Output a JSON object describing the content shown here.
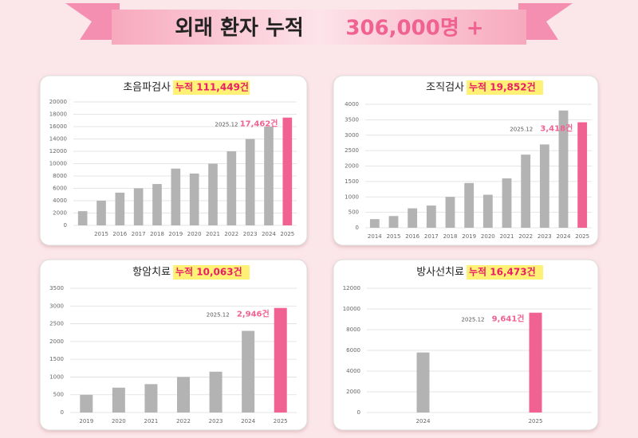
{
  "header": {
    "title": "외래 환자 누적",
    "total": "306,000명 +"
  },
  "chart_data": [
    {
      "type": "bar",
      "title": "초음파검사",
      "highlight": "누적 111,449건",
      "categories": [
        null,
        "2015",
        "2016",
        "2017",
        "2018",
        "2019",
        "2020",
        "2021",
        "2022",
        "2023",
        "2024",
        "2025"
      ],
      "values": [
        2300,
        4000,
        5300,
        6000,
        6700,
        9200,
        8400,
        10000,
        12000,
        14000,
        16000,
        17462
      ],
      "color": "#b3b3b3",
      "highlight_color": "#f06292",
      "ylim": [
        0,
        20000
      ],
      "yticks": [
        0,
        2000,
        4000,
        6000,
        8000,
        10000,
        12000,
        14000,
        16000,
        18000,
        20000
      ],
      "grid": true,
      "annotation": {
        "date": "2025.12",
        "label": "17,462건"
      }
    },
    {
      "type": "bar",
      "title": "조직검사",
      "highlight": "누적 19,852건",
      "categories": [
        "2014",
        "2015",
        "2016",
        "2017",
        "2018",
        "2019",
        "2020",
        "2021",
        "2022",
        "2023",
        "2024",
        "2025"
      ],
      "values": [
        280,
        380,
        630,
        720,
        1000,
        1450,
        1070,
        1600,
        2370,
        2700,
        3800,
        3418
      ],
      "color": "#b3b3b3",
      "highlight_color": "#f06292",
      "ylim": [
        0,
        4000
      ],
      "yticks": [
        0,
        500,
        1000,
        1500,
        2000,
        2500,
        3000,
        3500,
        4000
      ],
      "grid": true,
      "annotation": {
        "date": "2025.12",
        "label": "3,418건"
      }
    },
    {
      "type": "bar",
      "title": "항암치료",
      "highlight": "누적 10,063건",
      "categories": [
        "2019",
        "2020",
        "2021",
        "2022",
        "2023",
        "2024",
        "2025"
      ],
      "values": [
        500,
        700,
        800,
        1000,
        1150,
        2300,
        2946
      ],
      "color": "#b3b3b3",
      "highlight_color": "#f06292",
      "ylim": [
        0,
        3500
      ],
      "yticks": [
        0,
        500,
        1000,
        1500,
        2000,
        2500,
        3000,
        3500
      ],
      "grid": true,
      "annotation": {
        "date": "2025.12",
        "label": "2,946건"
      }
    },
    {
      "type": "bar",
      "title": "방사선치료",
      "highlight": "누적 16,473건",
      "categories": [
        "2024",
        "2025"
      ],
      "values": [
        5800,
        9641
      ],
      "color": "#b3b3b3",
      "highlight_color": "#f06292",
      "ylim": [
        0,
        12000
      ],
      "yticks": [
        0,
        2000,
        4000,
        6000,
        8000,
        10000,
        12000
      ],
      "grid": true,
      "annotation": {
        "date": "2025.12",
        "label": "9,641건"
      }
    }
  ]
}
